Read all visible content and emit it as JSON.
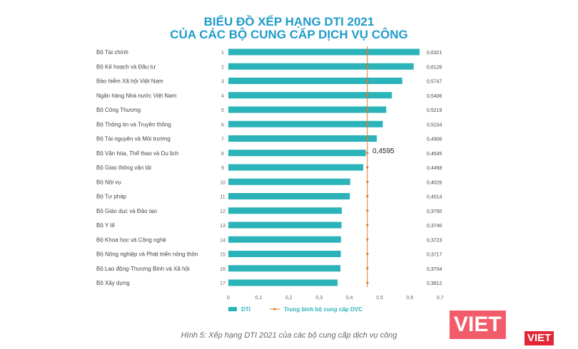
{
  "title_line1": "BIỂU ĐỒ XẾP HẠNG DTI 2021",
  "title_line2": "CỦA CÁC BỘ CUNG CẤP DỊCH VỤ CÔNG",
  "caption": "Hình 5: Xếp hạng DTI 2021 của các bộ cung cấp dịch vụ công",
  "logo_text": "VIET",
  "colors": {
    "bar": "#2ab3b8",
    "avg": "#e07b2a",
    "title": "#1f9cc9"
  },
  "chart_data": {
    "type": "bar",
    "orientation": "horizontal",
    "title": "BIỂU ĐỒ XẾP HẠNG DTI 2021 CỦA CÁC BỘ CUNG CẤP DỊCH VỤ CÔNG",
    "categories": [
      "Bộ Tài chính",
      "Bộ Kế hoạch và Đầu tư",
      "Bảo hiểm Xã hội Việt Nam",
      "Ngân hàng Nhà nước Việt Nam",
      "Bộ Công Thương",
      "Bộ Thông tin và Truyền thông",
      "Bộ Tài nguyên và Môi trường",
      "Bộ Văn hóa, Thể thao và Du lịch",
      "Bộ Giao thông vận tải",
      "Bộ Nội vụ",
      "Bộ Tư pháp",
      "Bộ Giáo dục và Đào tạo",
      "Bộ Y tế",
      "Bộ Khoa học và Công nghệ",
      "Bộ Nông nghiệp và Phát triển nông thôn",
      "Bộ Lao động-Thương Binh và Xã hội",
      "Bộ Xây dựng"
    ],
    "ranks": [
      "1",
      "2",
      "3",
      "4",
      "5",
      "6",
      "7",
      "8",
      "9",
      "10",
      "11",
      "12",
      "13",
      "14",
      "15",
      "16",
      "17"
    ],
    "series": [
      {
        "name": "DTI",
        "values": [
          0.6321,
          0.6126,
          0.5747,
          0.5406,
          0.5219,
          0.5104,
          0.4906,
          0.4545,
          0.4458,
          0.4026,
          0.4014,
          0.375,
          0.374,
          0.3723,
          0.3717,
          0.3704,
          0.3612
        ]
      },
      {
        "name": "Trung bình bộ cung cấp DVC",
        "value": 0.4595
      }
    ],
    "value_labels": [
      "0,6321",
      "0,6126",
      "0,5747",
      "0,5406",
      "0,5219",
      "0,5104",
      "0,4906",
      "0,4545",
      "0,4458",
      "0,4026",
      "0,4014",
      "0,3750",
      "0,3740",
      "0,3723",
      "0,3717",
      "0,3704",
      "0,3612"
    ],
    "avg_label": "0,4595",
    "xticks": [
      "0",
      "0,1",
      "0,2",
      "0,3",
      "0,4",
      "0,5",
      "0,6",
      "0,7"
    ],
    "xlim": [
      0,
      0.7
    ],
    "legend": [
      "DTI",
      "Trung bình bộ cung cấp DVC"
    ],
    "legend_position": "bottom-left"
  }
}
